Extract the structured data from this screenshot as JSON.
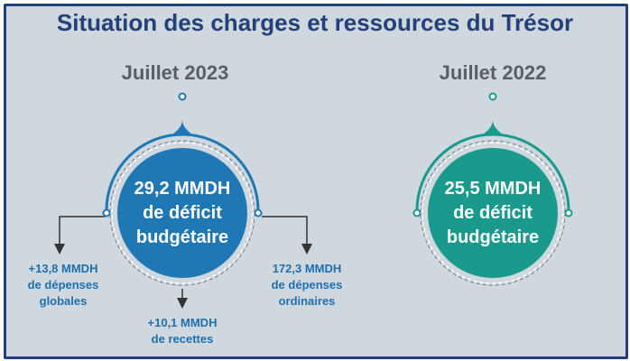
{
  "title": "Situation des charges et ressources du Trésor",
  "colors": {
    "frame": "#23407a",
    "background": "#cfd8df",
    "blue": "#1f78b4",
    "teal": "#1a9a8c",
    "note_text": "#1f6fad"
  },
  "periods": [
    {
      "label": "Juillet 2023",
      "value_line": "29,2 MMDH",
      "line2": "de déficit",
      "line3": "budgétaire"
    },
    {
      "label": "Juillet 2022",
      "value_line": "25,5 MMDH",
      "line2": "de déficit",
      "line3": "budgétaire"
    }
  ],
  "notes": {
    "left": {
      "line1": "+13,8 MMDH",
      "line2": "de dépenses",
      "line3": "globales"
    },
    "bottom": {
      "line1": "+10,1 MMDH",
      "line2": "de recettes"
    },
    "right": {
      "line1": "172,3 MMDH",
      "line2": "de dépenses",
      "line3": "ordinaires"
    }
  }
}
